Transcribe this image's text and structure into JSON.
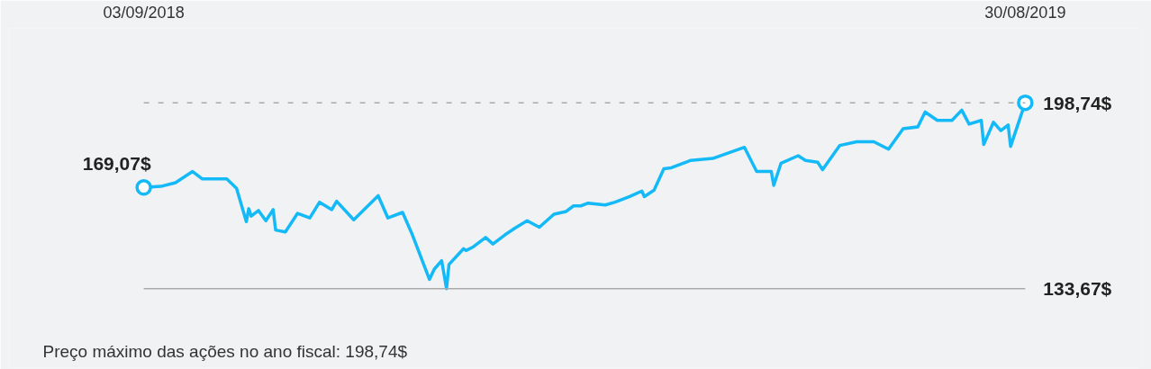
{
  "chart_data": {
    "type": "line",
    "x": [
      "2018-09-03",
      "2018-09-10",
      "2018-09-16",
      "2018-09-23",
      "2018-09-27",
      "2018-10-07",
      "2018-10-11",
      "2018-10-15",
      "2018-10-16",
      "2018-10-17",
      "2018-10-20",
      "2018-10-23",
      "2018-10-26",
      "2018-10-27",
      "2018-10-31",
      "2018-11-05",
      "2018-11-10",
      "2018-11-14",
      "2018-11-19",
      "2018-11-21",
      "2018-11-28",
      "2018-12-08",
      "2018-12-12",
      "2018-12-18",
      "2018-12-22",
      "2018-12-29",
      "2018-12-31",
      "2019-01-03",
      "2019-01-05",
      "2019-01-06",
      "2019-01-12",
      "2019-01-13",
      "2019-01-16",
      "2019-01-21",
      "2019-01-24",
      "2019-01-29",
      "2019-02-02",
      "2019-02-07",
      "2019-02-12",
      "2019-02-18",
      "2019-02-23",
      "2019-02-26",
      "2019-03-01",
      "2019-03-04",
      "2019-03-11",
      "2019-03-15",
      "2019-03-21",
      "2019-03-26",
      "2019-03-27",
      "2019-03-31",
      "2019-04-04",
      "2019-04-07",
      "2019-04-15",
      "2019-04-24",
      "2019-05-07",
      "2019-05-12",
      "2019-05-18",
      "2019-05-19",
      "2019-05-22",
      "2019-05-29",
      "2019-06-01",
      "2019-06-06",
      "2019-06-08",
      "2019-06-15",
      "2019-06-22",
      "2019-06-29",
      "2019-07-05",
      "2019-07-11",
      "2019-07-17",
      "2019-07-20",
      "2019-07-25",
      "2019-07-31",
      "2019-08-04",
      "2019-08-07",
      "2019-08-12",
      "2019-08-13",
      "2019-08-17",
      "2019-08-20",
      "2019-08-23",
      "2019-08-24",
      "2019-08-30"
    ],
    "series": [
      {
        "color": "#14b9f7",
        "values": [
          169.07,
          169.46,
          170.76,
          174.66,
          172.06,
          172.06,
          168.81,
          157.1,
          161.65,
          159.05,
          161.0,
          157.42,
          161.32,
          154.17,
          153.52,
          160.02,
          158.4,
          163.93,
          161.32,
          164.25,
          157.75,
          166.2,
          158.4,
          160.35,
          152.54,
          136.92,
          140.5,
          143.43,
          133.67,
          142.13,
          147.66,
          147.01,
          148.31,
          151.56,
          149.29,
          152.54,
          154.82,
          157.42,
          155.14,
          159.7,
          160.67,
          162.63,
          162.63,
          163.6,
          162.95,
          163.93,
          165.88,
          167.83,
          165.88,
          168.16,
          175.64,
          175.97,
          178.57,
          179.22,
          183.12,
          174.66,
          174.66,
          169.78,
          177.59,
          180.2,
          178.57,
          177.92,
          175.31,
          183.77,
          185.08,
          185.08,
          182.47,
          189.63,
          190.28,
          195.49,
          192.56,
          192.56,
          196.14,
          191.26,
          192.56,
          184.1,
          191.91,
          188.98,
          190.93,
          183.45,
          198.74
        ]
      }
    ],
    "xlim": [
      "2018-07-10",
      "2019-10-17"
    ],
    "ylim": [
      106.01,
      224.77
    ],
    "xticks": [
      {
        "value": "2018-09-03",
        "label": "03/09/2018"
      },
      {
        "value": "2019-08-30",
        "label": "30/08/2019"
      }
    ],
    "yticks": [
      {
        "value": 133.67,
        "label": "133,67$"
      },
      {
        "value": 198.74,
        "label": "198,74$"
      }
    ],
    "grid": false,
    "line_style": "solid",
    "ref_lines": [
      {
        "axis": "y",
        "value": 198.74,
        "color": "#aaaaaa",
        "line_style": "dashed"
      },
      {
        "axis": "y",
        "value": 133.67,
        "color": "#aaaaaa",
        "line_style": "solid"
      }
    ],
    "annotations": [
      {
        "text": "169,07$",
        "x": "2018-09-03",
        "y": 169.07
      },
      "Preço máximo das ações no ano fiscal: 198,74$"
    ]
  }
}
